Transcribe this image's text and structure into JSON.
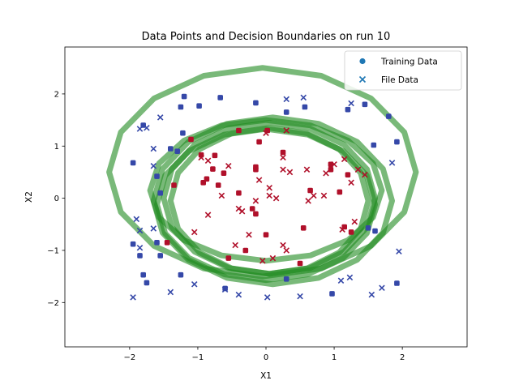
{
  "chart_data": {
    "type": "scatter",
    "title": "Data Points and Decision Boundaries on run 10",
    "xlabel": "X1",
    "ylabel": "X2",
    "xlim": [
      -2.95,
      2.95
    ],
    "ylim": [
      -2.85,
      2.9
    ],
    "xticks": [
      -2,
      -1,
      0,
      1,
      2
    ],
    "yticks": [
      -2,
      -1,
      0,
      1,
      2
    ],
    "grid": false,
    "legend_position": "top-right",
    "colors": {
      "class_outer": "#3548a8",
      "class_inner": "#b0102a",
      "boundary": "#1f8a1f",
      "legend_marker": "#1f77b4"
    },
    "series": [
      {
        "name": "Training Data",
        "marker": "circle",
        "points": [
          {
            "x": -1.95,
            "y": 0.68,
            "cls": "outer"
          },
          {
            "x": -1.8,
            "y": 1.4,
            "cls": "outer"
          },
          {
            "x": -1.2,
            "y": 1.95,
            "cls": "outer"
          },
          {
            "x": -1.25,
            "y": 1.75,
            "cls": "outer"
          },
          {
            "x": -0.98,
            "y": 1.77,
            "cls": "outer"
          },
          {
            "x": -0.67,
            "y": 1.93,
            "cls": "outer"
          },
          {
            "x": -0.15,
            "y": 1.83,
            "cls": "outer"
          },
          {
            "x": 0.3,
            "y": 1.65,
            "cls": "outer"
          },
          {
            "x": 0.57,
            "y": 1.75,
            "cls": "outer"
          },
          {
            "x": 1.2,
            "y": 1.7,
            "cls": "outer"
          },
          {
            "x": 1.45,
            "y": 1.8,
            "cls": "outer"
          },
          {
            "x": 1.8,
            "y": 1.57,
            "cls": "outer"
          },
          {
            "x": 1.92,
            "y": 1.08,
            "cls": "outer"
          },
          {
            "x": 1.58,
            "y": 1.02,
            "cls": "outer"
          },
          {
            "x": -1.4,
            "y": 0.95,
            "cls": "outer"
          },
          {
            "x": -1.3,
            "y": 0.9,
            "cls": "outer"
          },
          {
            "x": -1.6,
            "y": 0.42,
            "cls": "outer"
          },
          {
            "x": -1.55,
            "y": 0.1,
            "cls": "outer"
          },
          {
            "x": -1.95,
            "y": -0.88,
            "cls": "outer"
          },
          {
            "x": -1.85,
            "y": -1.1,
            "cls": "outer"
          },
          {
            "x": -1.55,
            "y": -1.1,
            "cls": "outer"
          },
          {
            "x": -1.6,
            "y": -0.85,
            "cls": "outer"
          },
          {
            "x": -1.8,
            "y": -1.47,
            "cls": "outer"
          },
          {
            "x": -1.75,
            "y": -1.62,
            "cls": "outer"
          },
          {
            "x": -1.25,
            "y": -1.47,
            "cls": "outer"
          },
          {
            "x": -0.6,
            "y": -1.73,
            "cls": "outer"
          },
          {
            "x": 0.3,
            "y": -1.55,
            "cls": "outer"
          },
          {
            "x": 0.97,
            "y": -1.83,
            "cls": "outer"
          },
          {
            "x": 1.92,
            "y": -1.63,
            "cls": "outer"
          },
          {
            "x": 1.5,
            "y": -0.57,
            "cls": "outer"
          },
          {
            "x": 1.6,
            "y": -0.63,
            "cls": "outer"
          },
          {
            "x": -1.22,
            "y": 1.25,
            "cls": "outer"
          },
          {
            "x": -0.95,
            "y": 0.83,
            "cls": "inner"
          },
          {
            "x": -0.78,
            "y": 0.56,
            "cls": "inner"
          },
          {
            "x": -0.62,
            "y": 0.48,
            "cls": "inner"
          },
          {
            "x": -0.7,
            "y": 0.25,
            "cls": "inner"
          },
          {
            "x": -0.92,
            "y": 0.3,
            "cls": "inner"
          },
          {
            "x": -0.87,
            "y": 0.37,
            "cls": "inner"
          },
          {
            "x": -1.35,
            "y": 0.25,
            "cls": "inner"
          },
          {
            "x": -0.4,
            "y": 0.1,
            "cls": "inner"
          },
          {
            "x": -0.55,
            "y": -1.15,
            "cls": "inner"
          },
          {
            "x": -0.15,
            "y": 0.6,
            "cls": "inner"
          },
          {
            "x": -0.15,
            "y": 0.55,
            "cls": "inner"
          },
          {
            "x": -0.1,
            "y": 1.08,
            "cls": "inner"
          },
          {
            "x": 0.25,
            "y": 0.88,
            "cls": "inner"
          },
          {
            "x": 0.02,
            "y": 1.3,
            "cls": "inner"
          },
          {
            "x": -0.2,
            "y": -0.2,
            "cls": "inner"
          },
          {
            "x": -0.15,
            "y": -0.3,
            "cls": "inner"
          },
          {
            "x": 0.0,
            "y": -0.7,
            "cls": "inner"
          },
          {
            "x": 0.55,
            "y": -0.57,
            "cls": "inner"
          },
          {
            "x": 0.65,
            "y": 0.15,
            "cls": "inner"
          },
          {
            "x": 0.5,
            "y": -1.25,
            "cls": "inner"
          },
          {
            "x": 0.95,
            "y": 0.65,
            "cls": "inner"
          },
          {
            "x": 0.95,
            "y": 0.55,
            "cls": "inner"
          },
          {
            "x": 1.08,
            "y": 0.12,
            "cls": "inner"
          },
          {
            "x": 1.15,
            "y": -0.55,
            "cls": "inner"
          },
          {
            "x": 1.25,
            "y": -0.65,
            "cls": "inner"
          },
          {
            "x": 1.2,
            "y": 0.45,
            "cls": "inner"
          },
          {
            "x": -1.1,
            "y": 1.13,
            "cls": "inner"
          },
          {
            "x": -0.75,
            "y": 0.82,
            "cls": "inner"
          },
          {
            "x": -1.45,
            "y": -0.85,
            "cls": "inner"
          },
          {
            "x": -0.4,
            "y": 1.3,
            "cls": "inner"
          },
          {
            "x": -0.3,
            "y": -1.0,
            "cls": "inner"
          }
        ]
      },
      {
        "name": "File Data",
        "marker": "x",
        "points": [
          {
            "x": -1.85,
            "y": 1.33,
            "cls": "outer"
          },
          {
            "x": -1.75,
            "y": 1.35,
            "cls": "outer"
          },
          {
            "x": -1.55,
            "y": 1.55,
            "cls": "outer"
          },
          {
            "x": -1.65,
            "y": 0.95,
            "cls": "outer"
          },
          {
            "x": -1.65,
            "y": 0.62,
            "cls": "outer"
          },
          {
            "x": -1.9,
            "y": -0.4,
            "cls": "outer"
          },
          {
            "x": -1.85,
            "y": -0.62,
            "cls": "outer"
          },
          {
            "x": -1.65,
            "y": -0.58,
            "cls": "outer"
          },
          {
            "x": -1.85,
            "y": -0.95,
            "cls": "outer"
          },
          {
            "x": -1.95,
            "y": -1.9,
            "cls": "outer"
          },
          {
            "x": -1.4,
            "y": -1.8,
            "cls": "outer"
          },
          {
            "x": -1.05,
            "y": -1.65,
            "cls": "outer"
          },
          {
            "x": -0.6,
            "y": -1.75,
            "cls": "outer"
          },
          {
            "x": -0.4,
            "y": -1.85,
            "cls": "outer"
          },
          {
            "x": 0.02,
            "y": -1.9,
            "cls": "outer"
          },
          {
            "x": 0.5,
            "y": -1.88,
            "cls": "outer"
          },
          {
            "x": 0.3,
            "y": 1.9,
            "cls": "outer"
          },
          {
            "x": 0.55,
            "y": 1.93,
            "cls": "outer"
          },
          {
            "x": 1.25,
            "y": 1.82,
            "cls": "outer"
          },
          {
            "x": 1.85,
            "y": 0.68,
            "cls": "outer"
          },
          {
            "x": 1.95,
            "y": -1.02,
            "cls": "outer"
          },
          {
            "x": 1.55,
            "y": -1.85,
            "cls": "outer"
          },
          {
            "x": 1.7,
            "y": -1.72,
            "cls": "outer"
          },
          {
            "x": 1.23,
            "y": -1.52,
            "cls": "outer"
          },
          {
            "x": 1.1,
            "y": -1.58,
            "cls": "outer"
          },
          {
            "x": -0.95,
            "y": 0.78,
            "cls": "inner"
          },
          {
            "x": -0.85,
            "y": 0.72,
            "cls": "inner"
          },
          {
            "x": -0.55,
            "y": 0.62,
            "cls": "inner"
          },
          {
            "x": -0.65,
            "y": 0.05,
            "cls": "inner"
          },
          {
            "x": -0.85,
            "y": -0.32,
            "cls": "inner"
          },
          {
            "x": -1.05,
            "y": -0.65,
            "cls": "inner"
          },
          {
            "x": -0.4,
            "y": -0.2,
            "cls": "inner"
          },
          {
            "x": -0.35,
            "y": -0.25,
            "cls": "inner"
          },
          {
            "x": -0.45,
            "y": -0.9,
            "cls": "inner"
          },
          {
            "x": -0.25,
            "y": -0.7,
            "cls": "inner"
          },
          {
            "x": -0.1,
            "y": 0.35,
            "cls": "inner"
          },
          {
            "x": 0.05,
            "y": 0.2,
            "cls": "inner"
          },
          {
            "x": 0.15,
            "y": 0.0,
            "cls": "inner"
          },
          {
            "x": 0.25,
            "y": 0.55,
            "cls": "inner"
          },
          {
            "x": 0.25,
            "y": 0.78,
            "cls": "inner"
          },
          {
            "x": 0.35,
            "y": 0.5,
            "cls": "inner"
          },
          {
            "x": 0.0,
            "y": 1.25,
            "cls": "inner"
          },
          {
            "x": 0.3,
            "y": 1.3,
            "cls": "inner"
          },
          {
            "x": 0.6,
            "y": 0.55,
            "cls": "inner"
          },
          {
            "x": 0.7,
            "y": 0.05,
            "cls": "inner"
          },
          {
            "x": 0.62,
            "y": -0.05,
            "cls": "inner"
          },
          {
            "x": 0.85,
            "y": 0.05,
            "cls": "inner"
          },
          {
            "x": 0.88,
            "y": 0.48,
            "cls": "inner"
          },
          {
            "x": 1.0,
            "y": 0.65,
            "cls": "inner"
          },
          {
            "x": 0.1,
            "y": -1.15,
            "cls": "inner"
          },
          {
            "x": 0.25,
            "y": -0.9,
            "cls": "inner"
          },
          {
            "x": 0.3,
            "y": -1.0,
            "cls": "inner"
          },
          {
            "x": -0.05,
            "y": -1.2,
            "cls": "inner"
          },
          {
            "x": 1.12,
            "y": -0.6,
            "cls": "inner"
          },
          {
            "x": 1.3,
            "y": -0.45,
            "cls": "inner"
          },
          {
            "x": 1.35,
            "y": 0.55,
            "cls": "inner"
          },
          {
            "x": 1.45,
            "y": 0.45,
            "cls": "inner"
          },
          {
            "x": 1.15,
            "y": 0.75,
            "cls": "inner"
          },
          {
            "x": 1.25,
            "y": 0.3,
            "cls": "inner"
          },
          {
            "x": 0.05,
            "y": 0.05,
            "cls": "inner"
          },
          {
            "x": -0.15,
            "y": -0.05,
            "cls": "inner"
          }
        ]
      }
    ],
    "boundaries": [
      {
        "cx": -0.05,
        "cy": 0.5,
        "rx": 2.25,
        "ry": 2.0
      },
      {
        "cx": 0.1,
        "cy": -0.05,
        "rx": 1.75,
        "ry": 1.6
      },
      {
        "cx": 0.05,
        "cy": 0.0,
        "rx": 1.55,
        "ry": 1.45
      },
      {
        "cx": 0.0,
        "cy": -0.12,
        "rx": 1.6,
        "ry": 1.45
      },
      {
        "cx": 0.0,
        "cy": 0.15,
        "rx": 1.7,
        "ry": 1.35
      },
      {
        "cx": 0.05,
        "cy": -0.05,
        "rx": 1.45,
        "ry": 1.4
      }
    ]
  }
}
